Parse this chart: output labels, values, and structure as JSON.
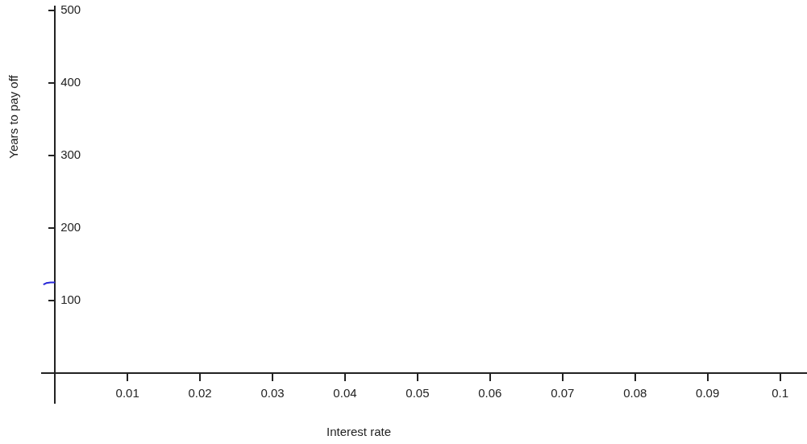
{
  "chart_data": {
    "type": "line",
    "xlabel": "Interest rate",
    "ylabel": "Years to pay off",
    "series": [
      {
        "color": "#2828d8",
        "x": [
          -0.0016,
          -0.0012,
          -0.0006,
          0
        ],
        "values": [
          122,
          124,
          125,
          125
        ]
      }
    ],
    "xlim": [
      -0.0018,
      0.1036
    ],
    "ylim": [
      -41,
      505
    ],
    "xticks": [
      0.01,
      0.02,
      0.03,
      0.04,
      0.05,
      0.06,
      0.07,
      0.08,
      0.09,
      0.1
    ],
    "yticks": [
      100,
      200,
      300,
      400,
      500
    ],
    "grid": false,
    "legend": false,
    "marker": "none",
    "line_style": "solid"
  }
}
